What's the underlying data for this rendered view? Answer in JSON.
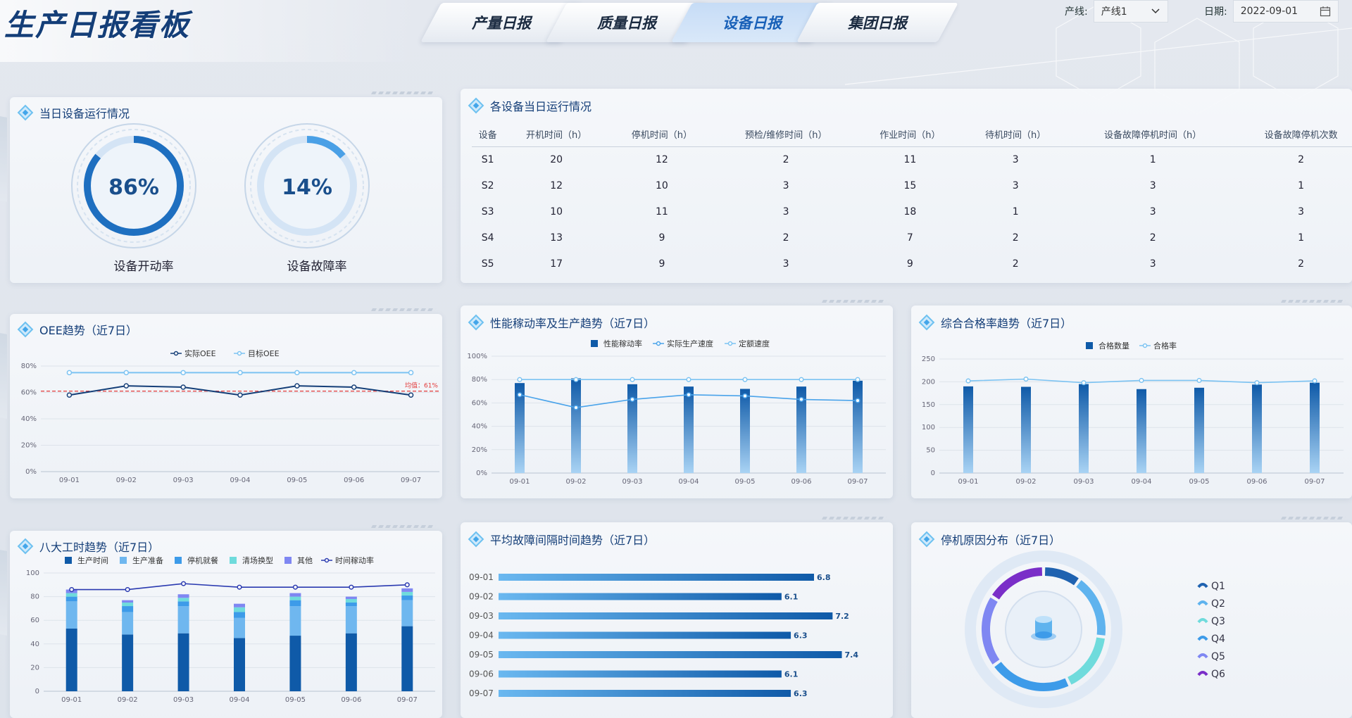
{
  "header": {
    "title": "生产日报看板",
    "tabs": [
      {
        "label": "产量日报",
        "active": false
      },
      {
        "label": "质量日报",
        "active": false
      },
      {
        "label": "设备日报",
        "active": true
      },
      {
        "label": "集团日报",
        "active": false
      }
    ],
    "line_filter": {
      "label": "产线:",
      "value": "产线1"
    },
    "date_filter": {
      "label": "日期:",
      "value": "2022-09-01"
    }
  },
  "daily_status": {
    "title": "当日设备运行情况",
    "gauges": [
      {
        "value": 86,
        "text": "86%",
        "label": "设备开动率"
      },
      {
        "value": 14,
        "text": "14%",
        "label": "设备故障率"
      }
    ]
  },
  "equipment_table": {
    "title": "各设备当日运行情况",
    "columns": [
      "设备",
      "开机时间（h）",
      "停机时间（h）",
      "预检/维修时间（h）",
      "作业时间（h）",
      "待机时间（h）",
      "设备故障停机时间（h）",
      "设备故障停机次数"
    ],
    "rows": [
      [
        "S1",
        "20",
        "12",
        "2",
        "11",
        "3",
        "1",
        "2"
      ],
      [
        "S2",
        "12",
        "10",
        "3",
        "15",
        "3",
        "3",
        "1"
      ],
      [
        "S3",
        "10",
        "11",
        "3",
        "18",
        "1",
        "3",
        "3"
      ],
      [
        "S4",
        "13",
        "9",
        "2",
        "7",
        "2",
        "2",
        "1"
      ],
      [
        "S5",
        "17",
        "9",
        "3",
        "9",
        "2",
        "3",
        "2"
      ]
    ]
  },
  "panel_titles": {
    "oee": "OEE趋势（近7日）",
    "perf": "性能稼动率及生产趋势（近7日）",
    "quality": "综合合格率趋势（近7日）",
    "hours": "八大工时趋势（近7日）",
    "mtbf": "平均故障间隔时间趋势（近7日）",
    "downtime": "停机原因分布（近7日）"
  },
  "colors": {
    "dark_blue": "#0f5aa8",
    "light_blue": "#6ab8f0",
    "line_target": "#7cc3f2",
    "avg_line": "#e23b3b"
  },
  "chart_data": [
    {
      "id": "oee",
      "type": "line",
      "x": [
        "09-01",
        "09-02",
        "09-03",
        "09-04",
        "09-05",
        "09-06",
        "09-07"
      ],
      "series": [
        {
          "name": "实际OEE",
          "values": [
            58,
            65,
            64,
            58,
            65,
            64,
            58
          ]
        },
        {
          "name": "目标OEE",
          "values": [
            75,
            75,
            75,
            75,
            75,
            75,
            75
          ]
        }
      ],
      "reference_line": {
        "label": "均值：61%",
        "value": 61
      },
      "yticks": [
        "0%",
        "20%",
        "40%",
        "60%",
        "80%"
      ],
      "ylim": [
        0,
        80
      ]
    },
    {
      "id": "perf",
      "type": "bar",
      "x": [
        "09-01",
        "09-02",
        "09-03",
        "09-04",
        "09-05",
        "09-06",
        "09-07"
      ],
      "series": [
        {
          "name": "性能稼动率",
          "type": "bar",
          "values": [
            77,
            81,
            76,
            74,
            72,
            74,
            79
          ]
        },
        {
          "name": "实际生产速度",
          "type": "line",
          "values": [
            67,
            56,
            63,
            67,
            66,
            63,
            62
          ]
        },
        {
          "name": "定额速度",
          "type": "line",
          "values": [
            80,
            80,
            80,
            80,
            80,
            80,
            80
          ]
        }
      ],
      "yticks": [
        "0%",
        "20%",
        "40%",
        "60%",
        "80%",
        "100%"
      ],
      "ylim": [
        0,
        100
      ]
    },
    {
      "id": "quality",
      "type": "bar",
      "x": [
        "09-01",
        "09-02",
        "09-03",
        "09-04",
        "09-05",
        "09-06",
        "09-07"
      ],
      "series": [
        {
          "name": "合格数量",
          "type": "bar",
          "values": [
            190,
            189,
            195,
            184,
            187,
            194,
            198
          ]
        },
        {
          "name": "合格率",
          "type": "line",
          "values": [
            202,
            206,
            198,
            203,
            203,
            198,
            202
          ]
        }
      ],
      "yticks": [
        "0",
        "50",
        "100",
        "150",
        "200",
        "250"
      ],
      "ylim": [
        0,
        250
      ]
    },
    {
      "id": "hours",
      "type": "bar",
      "stacked": true,
      "x": [
        "09-01",
        "09-02",
        "09-03",
        "09-04",
        "09-05",
        "09-06",
        "09-07"
      ],
      "series": [
        {
          "name": "生产时间",
          "type": "bar",
          "values": [
            53,
            48,
            49,
            45,
            47,
            49,
            55
          ]
        },
        {
          "name": "生产准备",
          "type": "bar",
          "values": [
            23,
            19,
            23,
            17,
            25,
            23,
            22
          ]
        },
        {
          "name": "停机就餐",
          "type": "bar",
          "values": [
            4,
            5,
            4,
            5,
            5,
            3,
            4
          ]
        },
        {
          "name": "清场换型",
          "type": "bar",
          "values": [
            3,
            3,
            3,
            4,
            3,
            3,
            3
          ]
        },
        {
          "name": "其他",
          "type": "bar",
          "values": [
            3,
            2,
            3,
            3,
            3,
            2,
            3
          ]
        },
        {
          "name": "时间稼动率",
          "type": "line",
          "values": [
            86,
            86,
            91,
            88,
            88,
            88,
            90
          ]
        }
      ],
      "yticks": [
        "0",
        "20",
        "40",
        "60",
        "80",
        "100"
      ],
      "ylim": [
        0,
        100
      ]
    },
    {
      "id": "mtbf",
      "type": "bar",
      "orientation": "horizontal",
      "categories": [
        "09-01",
        "09-02",
        "09-03",
        "09-04",
        "09-05",
        "09-06",
        "09-07"
      ],
      "values": [
        6.8,
        6.1,
        7.2,
        6.3,
        7.4,
        6.1,
        6.3
      ],
      "labels": [
        "6.8",
        "6.1",
        "7.2",
        "6.3",
        "7.4",
        "6.1",
        "6.3"
      ]
    },
    {
      "id": "downtime",
      "type": "pie",
      "donut": true,
      "categories": [
        "Q1",
        "Q2",
        "Q3",
        "Q4",
        "Q5",
        "Q6"
      ],
      "values": [
        10,
        17,
        16,
        22,
        19,
        16
      ],
      "colors": [
        "#1f62b0",
        "#5fb3ee",
        "#6fdbdc",
        "#3d9be9",
        "#7f87f2",
        "#7a2ec8"
      ]
    }
  ]
}
